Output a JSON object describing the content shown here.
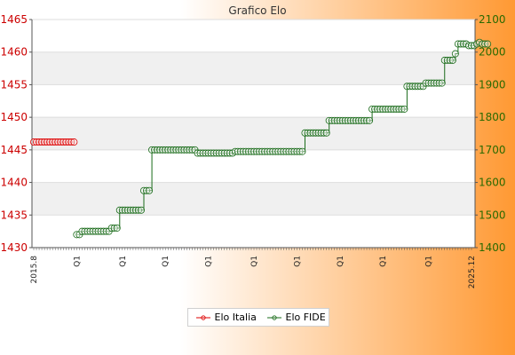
{
  "colors": {
    "left_series": "#dd0000",
    "right_series": "#1a6b1a",
    "left_axis_text": "#cc0000",
    "right_axis_text": "#2a6a00",
    "bg_left": "#ffffff",
    "bg_right": "#ff9933"
  },
  "chart_data": {
    "type": "line",
    "title": "Grafico Elo",
    "xlabel": "",
    "ylabel": "",
    "grid": true,
    "legend_position": "bottom",
    "x_tick_count": 164,
    "x_tick_labels": [
      "2015.8",
      "Q1",
      "Q1",
      "Q1",
      "Q1",
      "Q1",
      "Q1",
      "Q1",
      "Q1",
      "Q1",
      "2025.12"
    ],
    "y_left": {
      "ticks": [
        1430,
        1435,
        1440,
        1445,
        1450,
        1455,
        1460,
        1465
      ],
      "range": [
        1430,
        1465
      ]
    },
    "y_right": {
      "ticks": [
        1400,
        1500,
        1600,
        1700,
        1800,
        1900,
        2000,
        2100
      ],
      "range": [
        1400,
        2100
      ]
    },
    "series": [
      {
        "name": "Elo Italia",
        "axis": "left",
        "start_index": 0,
        "values": [
          1446.2,
          1446.2,
          1446.2,
          1446.2,
          1446.2,
          1446.2,
          1446.2,
          1446.2,
          1446.2,
          1446.2,
          1446.2,
          1446.2,
          1446.2,
          1446.2,
          1446.2,
          1446.2
        ]
      },
      {
        "name": "Elo FIDE",
        "axis": "right",
        "start_index": 16,
        "values": [
          1440,
          1440,
          1450,
          1450,
          1450,
          1450,
          1450,
          1450,
          1450,
          1450,
          1450,
          1450,
          1450,
          1460,
          1460,
          1460,
          1515,
          1515,
          1515,
          1515,
          1515,
          1515,
          1515,
          1515,
          1515,
          1575,
          1575,
          1575,
          1700,
          1700,
          1700,
          1700,
          1700,
          1700,
          1700,
          1700,
          1700,
          1700,
          1700,
          1700,
          1700,
          1700,
          1700,
          1700,
          1700,
          1690,
          1690,
          1690,
          1690,
          1690,
          1690,
          1690,
          1690,
          1690,
          1690,
          1690,
          1690,
          1690,
          1690,
          1695,
          1695,
          1695,
          1695,
          1695,
          1695,
          1695,
          1695,
          1695,
          1695,
          1695,
          1695,
          1695,
          1695,
          1695,
          1695,
          1695,
          1695,
          1695,
          1695,
          1695,
          1695,
          1695,
          1695,
          1695,
          1695,
          1752,
          1752,
          1752,
          1752,
          1752,
          1752,
          1752,
          1752,
          1752,
          1790,
          1790,
          1790,
          1790,
          1790,
          1790,
          1790,
          1790,
          1790,
          1790,
          1790,
          1790,
          1790,
          1790,
          1790,
          1790,
          1825,
          1825,
          1825,
          1825,
          1825,
          1825,
          1825,
          1825,
          1825,
          1825,
          1825,
          1825,
          1825,
          1895,
          1895,
          1895,
          1895,
          1895,
          1895,
          1895,
          1905,
          1905,
          1905,
          1905,
          1905,
          1905,
          1905,
          1975,
          1975,
          1975,
          1975,
          1995,
          2025,
          2025,
          2025,
          2025,
          2020,
          2020,
          2020,
          2025,
          2030,
          2025,
          2025,
          2025
        ]
      }
    ]
  }
}
